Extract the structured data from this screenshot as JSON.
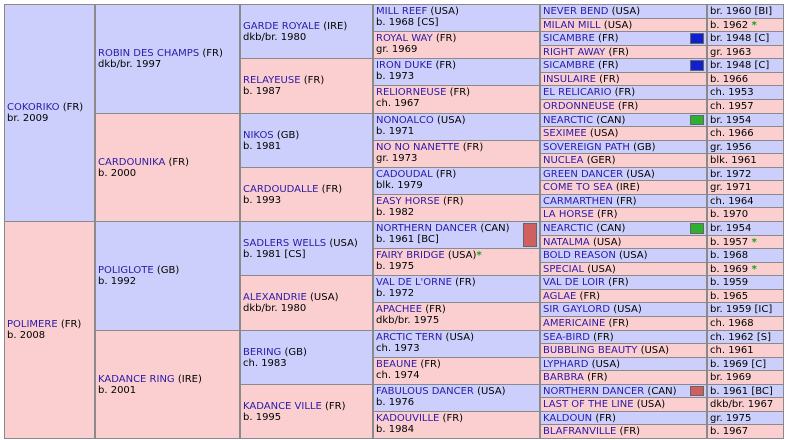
{
  "subject": {
    "name": "COKORIKO",
    "country": "(FR)",
    "detail": "br. 2009"
  },
  "gen1": [
    {
      "name": "COKORIKO",
      "country": "(FR)",
      "detail": "br. 2009"
    },
    {
      "name": "POLIMERE",
      "country": "(FR)",
      "detail": "b. 2008"
    }
  ],
  "gen2": [
    {
      "name": "ROBIN DES CHAMPS",
      "country": "(FR)",
      "detail": "dkb/br. 1997"
    },
    {
      "name": "CARDOUNIKA",
      "country": "(FR)",
      "detail": "b. 2000"
    },
    {
      "name": "POLIGLOTE",
      "country": "(GB)",
      "detail": "b. 1992"
    },
    {
      "name": "KADANCE RING",
      "country": "(IRE)",
      "detail": "b. 2001"
    }
  ],
  "gen3": [
    {
      "name": "GARDE ROYALE",
      "country": "(IRE)",
      "detail": "dkb/br. 1980"
    },
    {
      "name": "RELAYEUSE",
      "country": "(FR)",
      "detail": "b. 1987"
    },
    {
      "name": "NIKOS",
      "country": "(GB)",
      "detail": "b. 1981"
    },
    {
      "name": "CARDOUDALLE",
      "country": "(FR)",
      "detail": "b. 1993"
    },
    {
      "name": "SADLERS WELLS",
      "country": "(USA)",
      "detail": "b. 1981 [CS]"
    },
    {
      "name": "ALEXANDRIE",
      "country": "(USA)",
      "detail": "dkb/br. 1980"
    },
    {
      "name": "BERING",
      "country": "(GB)",
      "detail": "ch. 1983"
    },
    {
      "name": "KADANCE VILLE",
      "country": "(FR)",
      "detail": "b. 1995"
    }
  ],
  "gen4": [
    {
      "name": "MILL REEF",
      "country": "(USA)",
      "detail": "b. 1968 [CS]"
    },
    {
      "name": "ROYAL WAY",
      "country": "(FR)",
      "detail": "gr. 1969"
    },
    {
      "name": "IRON DUKE",
      "country": "(FR)",
      "detail": "b. 1973"
    },
    {
      "name": "RELIORNEUSE",
      "country": "(FR)",
      "detail": "ch. 1967"
    },
    {
      "name": "NONOALCO",
      "country": "(USA)",
      "detail": "b. 1971"
    },
    {
      "name": "NO NO NANETTE",
      "country": "(FR)",
      "detail": "gr. 1973"
    },
    {
      "name": "CADOUDAL",
      "country": "(FR)",
      "detail": "blk. 1979"
    },
    {
      "name": "EASY HORSE",
      "country": "(FR)",
      "detail": "b. 1982"
    },
    {
      "name": "NORTHERN DANCER",
      "country": "(CAN)",
      "detail": "b. 1961 [BC]",
      "bar": "#d06060"
    },
    {
      "name": "FAIRY BRIDGE",
      "country": "(USA)",
      "detail": "b. 1975",
      "star": "*"
    },
    {
      "name": "VAL DE L'ORNE",
      "country": "(FR)",
      "detail": "b. 1972"
    },
    {
      "name": "APACHEE",
      "country": "(FR)",
      "detail": "dkb/br. 1975"
    },
    {
      "name": "ARCTIC TERN",
      "country": "(USA)",
      "detail": "ch. 1973"
    },
    {
      "name": "BEAUNE",
      "country": "(FR)",
      "detail": "ch. 1974"
    },
    {
      "name": "FABULOUS DANCER",
      "country": "(USA)",
      "detail": "b. 1976"
    },
    {
      "name": "KADOUVILLE",
      "country": "(FR)",
      "detail": "b. 1984"
    }
  ],
  "gen5": [
    {
      "name": "NEVER BEND",
      "country": "(USA)",
      "detail": "br. 1960 [BI]"
    },
    {
      "name": "MILAN MILL",
      "country": "(USA)",
      "detail": "b. 1962",
      "star": "*"
    },
    {
      "name": "SICAMBRE",
      "country": "(FR)",
      "detail": "br. 1948 [C]",
      "bar": "#1020d0"
    },
    {
      "name": "RIGHT AWAY",
      "country": "(FR)",
      "detail": "gr. 1963"
    },
    {
      "name": "SICAMBRE",
      "country": "(FR)",
      "detail": "br. 1948 [C]",
      "bar": "#1020d0"
    },
    {
      "name": "INSULAIRE",
      "country": "(FR)",
      "detail": "b. 1966"
    },
    {
      "name": "EL RELICARIO",
      "country": "(FR)",
      "detail": "ch. 1953"
    },
    {
      "name": "ORDONNEUSE",
      "country": "(FR)",
      "detail": "ch. 1957"
    },
    {
      "name": "NEARCTIC",
      "country": "(CAN)",
      "detail": "br. 1954",
      "bar": "#30b030"
    },
    {
      "name": "SEXIMEE",
      "country": "(USA)",
      "detail": "ch. 1966"
    },
    {
      "name": "SOVEREIGN PATH",
      "country": "(GB)",
      "detail": "gr. 1956"
    },
    {
      "name": "NUCLEA",
      "country": "(GER)",
      "detail": "blk. 1961"
    },
    {
      "name": "GREEN DANCER",
      "country": "(USA)",
      "detail": "br. 1972"
    },
    {
      "name": "COME TO SEA",
      "country": "(IRE)",
      "detail": "gr. 1971"
    },
    {
      "name": "CARMARTHEN",
      "country": "(FR)",
      "detail": "ch. 1964"
    },
    {
      "name": "LA HORSE",
      "country": "(FR)",
      "detail": "b. 1970"
    },
    {
      "name": "NEARCTIC",
      "country": "(CAN)",
      "detail": "br. 1954",
      "bar": "#30b030"
    },
    {
      "name": "NATALMA",
      "country": "(USA)",
      "detail": "b. 1957",
      "star": "*"
    },
    {
      "name": "BOLD REASON",
      "country": "(USA)",
      "detail": "b. 1968"
    },
    {
      "name": "SPECIAL",
      "country": "(USA)",
      "detail": "b. 1969",
      "star": "*"
    },
    {
      "name": "VAL DE LOIR",
      "country": "(FR)",
      "detail": "b. 1959"
    },
    {
      "name": "AGLAE",
      "country": "(FR)",
      "detail": "b. 1965"
    },
    {
      "name": "SIR GAYLORD",
      "country": "(USA)",
      "detail": "br. 1959 [IC]"
    },
    {
      "name": "AMERICAINE",
      "country": "(FR)",
      "detail": "ch. 1968"
    },
    {
      "name": "SEA-BIRD",
      "country": "(FR)",
      "detail": "ch. 1962 [S]"
    },
    {
      "name": "BUBBLING BEAUTY",
      "country": "(USA)",
      "detail": "ch. 1961"
    },
    {
      "name": "LYPHARD",
      "country": "(USA)",
      "detail": "b. 1969 [C]"
    },
    {
      "name": "BARBRA",
      "country": "(FR)",
      "detail": "br. 1969"
    },
    {
      "name": "NORTHERN DANCER",
      "country": "(CAN)",
      "detail": "b. 1961 [BC]",
      "bar": "#d06060"
    },
    {
      "name": "LAST OF THE LINE",
      "country": "(USA)",
      "detail": "dkb/br. 1967"
    },
    {
      "name": "KALDOUN",
      "country": "(FR)",
      "detail": "gr. 1975"
    },
    {
      "name": "BLAFRANVILLE",
      "country": "(FR)",
      "detail": "b. 1967"
    }
  ],
  "colors": {
    "male": "#cccffb",
    "female": "#fbcfd0",
    "link": "#2a1aa8",
    "star": "#18a018"
  }
}
